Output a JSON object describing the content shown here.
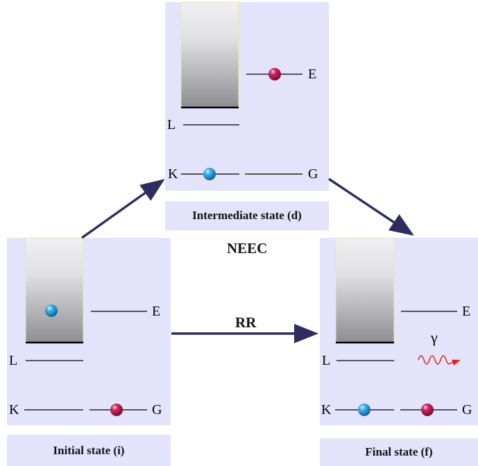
{
  "panels": {
    "intermediate": {
      "caption": "Intermediate state (d)",
      "levels": {
        "E": "E",
        "L": "L",
        "K": "K",
        "G": "G"
      }
    },
    "initial": {
      "caption": "Initial state (i)",
      "levels": {
        "E": "E",
        "L": "L",
        "K": "K",
        "G": "G"
      }
    },
    "final": {
      "caption": "Final state (f)",
      "levels": {
        "E": "E",
        "L": "L",
        "K": "K",
        "G": "G"
      },
      "photon": "γ"
    }
  },
  "processes": {
    "neec": "NEEC",
    "rr": "RR"
  },
  "colors": {
    "panel_bg": "#e3e3fc",
    "arrow": "#2e2e5e",
    "electron": "#2a9fd8",
    "nucleus": "#c01f55",
    "photon": "#e0231a"
  }
}
